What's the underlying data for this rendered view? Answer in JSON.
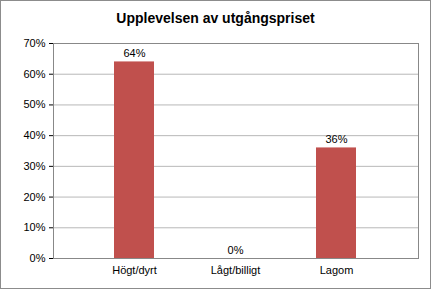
{
  "chart_data": {
    "type": "bar",
    "title": "Upplevelsen av utgångspriset",
    "categories": [
      "Högt/dyrt",
      "Lågt/billigt",
      "Lagom"
    ],
    "values": [
      64,
      0,
      36
    ],
    "value_labels": [
      "64%",
      "0%",
      "36%"
    ],
    "data_labels": true,
    "color": "#c0504d",
    "ylim": [
      0,
      70
    ],
    "yticks": [
      {
        "value": 0,
        "label": "0%"
      },
      {
        "value": 10,
        "label": "10%"
      },
      {
        "value": 20,
        "label": "20%"
      },
      {
        "value": 30,
        "label": "30%"
      },
      {
        "value": 40,
        "label": "40%"
      },
      {
        "value": 50,
        "label": "50%"
      },
      {
        "value": 60,
        "label": "60%"
      },
      {
        "value": 70,
        "label": "70%"
      }
    ],
    "grid": true
  }
}
